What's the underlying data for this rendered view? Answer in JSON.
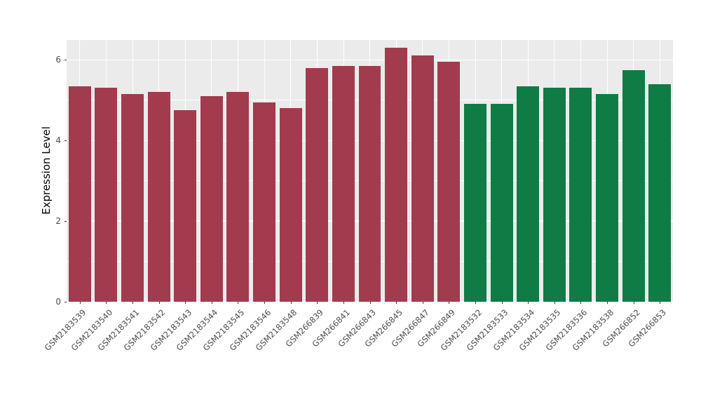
{
  "chart_data": {
    "type": "bar",
    "title": "",
    "xlabel": "",
    "ylabel": "Expression Level",
    "ylim": [
      0,
      6.49
    ],
    "yticks": [
      0,
      2,
      4,
      6
    ],
    "yticks_minor": [
      1,
      3,
      5
    ],
    "grid": "on",
    "legend": "none",
    "categories": [
      "GSM2183539",
      "GSM2183540",
      "GSM2183541",
      "GSM2183542",
      "GSM2183543",
      "GSM2183544",
      "GSM2183545",
      "GSM2183546",
      "GSM2183548",
      "GSM266839",
      "GSM266841",
      "GSM266843",
      "GSM266845",
      "GSM266847",
      "GSM266849",
      "GSM2183532",
      "GSM2183533",
      "GSM2183534",
      "GSM2183535",
      "GSM2183536",
      "GSM2183538",
      "GSM266852",
      "GSM266853"
    ],
    "series": [
      {
        "name": "Expression Level",
        "values": [
          5.35,
          5.3,
          5.15,
          5.2,
          4.75,
          5.1,
          5.2,
          4.95,
          4.8,
          5.8,
          5.85,
          5.85,
          6.3,
          6.1,
          5.95,
          4.9,
          4.9,
          5.35,
          5.3,
          5.3,
          5.15,
          5.75,
          5.4
        ]
      }
    ],
    "bar_groups": [
      "group1",
      "group1",
      "group1",
      "group1",
      "group1",
      "group1",
      "group1",
      "group1",
      "group1",
      "group1",
      "group1",
      "group1",
      "group1",
      "group1",
      "group1",
      "group2",
      "group2",
      "group2",
      "group2",
      "group2",
      "group2",
      "group2",
      "group2"
    ],
    "colors": {
      "group1": "#A23B4E",
      "group2": "#0F7B45"
    }
  },
  "panel": {
    "background": "#EBEBEB",
    "grid_color": "#FFFFFF",
    "tick_color": "#333333",
    "tick_label_color": "#4D4D4D"
  }
}
